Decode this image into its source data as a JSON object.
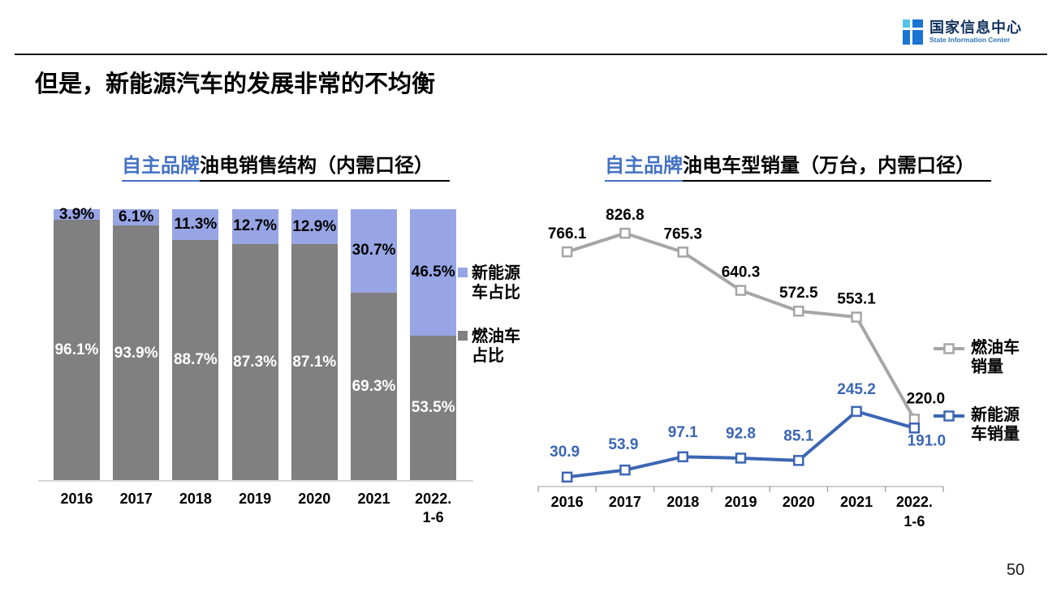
{
  "header": {
    "logo_title": "国家信息中心",
    "logo_subtitle": "State Information Center",
    "slide_title": "但是，新能源汽车的发展非常的不均衡"
  },
  "footer": {
    "page_number": "50"
  },
  "chart_data": [
    {
      "type": "bar",
      "stacked": true,
      "title_highlight": "自主品牌",
      "title_rest": "油电销售结构（内需口径）",
      "categories": [
        "2016",
        "2017",
        "2018",
        "2019",
        "2020",
        "2021",
        "2022.|1-6"
      ],
      "series": [
        {
          "name": "燃油车占比",
          "legend_lines": [
            "燃油车",
            "占比"
          ],
          "color": "#808080",
          "label_color": "#FFFFFF",
          "values": [
            96.1,
            93.9,
            88.7,
            87.3,
            87.1,
            69.3,
            53.5
          ]
        },
        {
          "name": "新能源车占比",
          "legend_lines": [
            "新能源",
            "车占比"
          ],
          "color": "#97A5E5",
          "label_color": "#000000",
          "values": [
            3.9,
            6.1,
            11.3,
            12.7,
            12.9,
            30.7,
            46.5
          ]
        }
      ],
      "value_suffix": "%",
      "ylim": [
        0,
        100
      ],
      "grid": false,
      "legend_position": "right"
    },
    {
      "type": "line",
      "title_highlight": "自主品牌",
      "title_rest": "油电车型销量（万台，内需口径）",
      "categories": [
        "2016",
        "2017",
        "2018",
        "2019",
        "2020",
        "2021",
        "2022.|1-6"
      ],
      "series": [
        {
          "name": "燃油车销量",
          "legend_lines": [
            "燃油车",
            "销量"
          ],
          "color": "#A6A6A6",
          "label_color": "#000000",
          "values": [
            766.1,
            826.8,
            765.3,
            640.3,
            572.5,
            553.1,
            220.0
          ]
        },
        {
          "name": "新能源车销量",
          "legend_lines": [
            "新能源",
            "车销量"
          ],
          "color": "#3B66B4",
          "label_color": "#3B66B4",
          "values": [
            30.9,
            53.9,
            97.1,
            92.8,
            85.1,
            245.2,
            191.0
          ]
        }
      ],
      "ylim": [
        0,
        900
      ],
      "marker": "square",
      "grid": false,
      "legend_position": "right"
    }
  ]
}
